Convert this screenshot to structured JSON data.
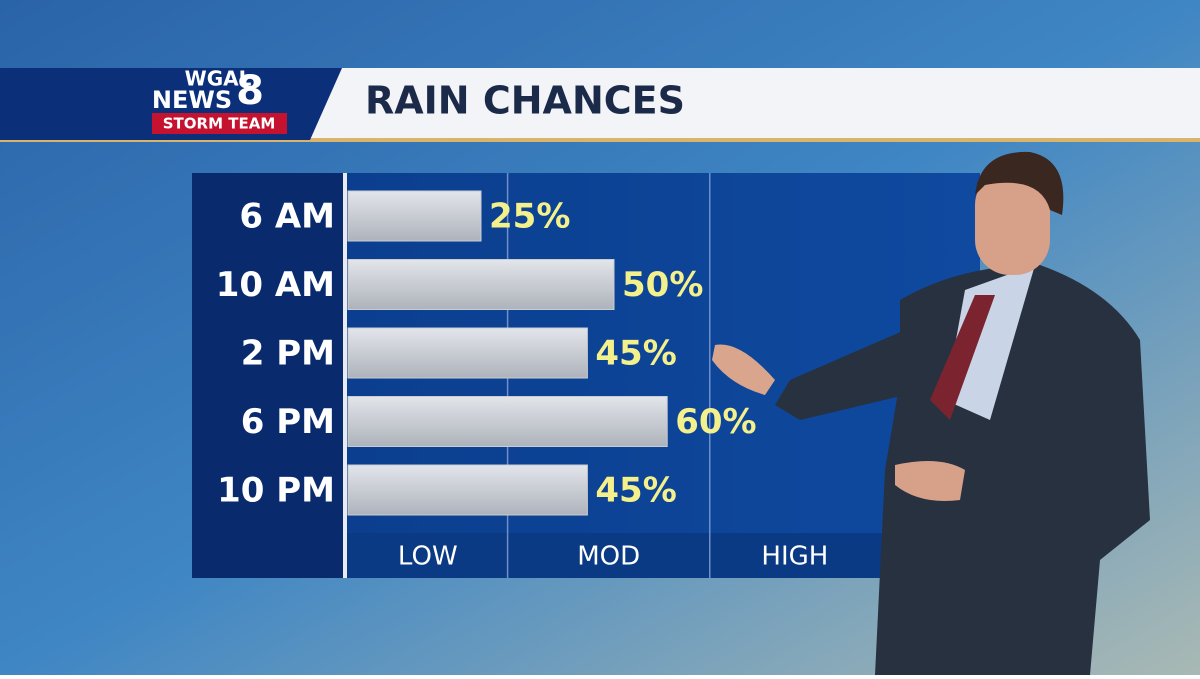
{
  "header": {
    "station": "WGAL",
    "brand": "NEWS",
    "channel": "8",
    "team": "STORM TEAM"
  },
  "chart_data": {
    "type": "hbar",
    "title": "RAIN CHANCES",
    "categories": [
      "6 AM",
      "10 AM",
      "2 PM",
      "6 PM",
      "10 PM"
    ],
    "values": [
      25,
      50,
      45,
      60,
      45
    ],
    "value_labels": [
      "25%",
      "50%",
      "45%",
      "60%",
      "45%"
    ],
    "color": "#c9ccd3",
    "label_color": "#f4f08c",
    "xlim": [
      0,
      100
    ],
    "x_bands": [
      {
        "label": "LOW",
        "from": 0,
        "to": 30
      },
      {
        "label": "MOD",
        "from": 30,
        "to": 68
      },
      {
        "label": "HIGH",
        "from": 68,
        "to": 100
      }
    ]
  }
}
